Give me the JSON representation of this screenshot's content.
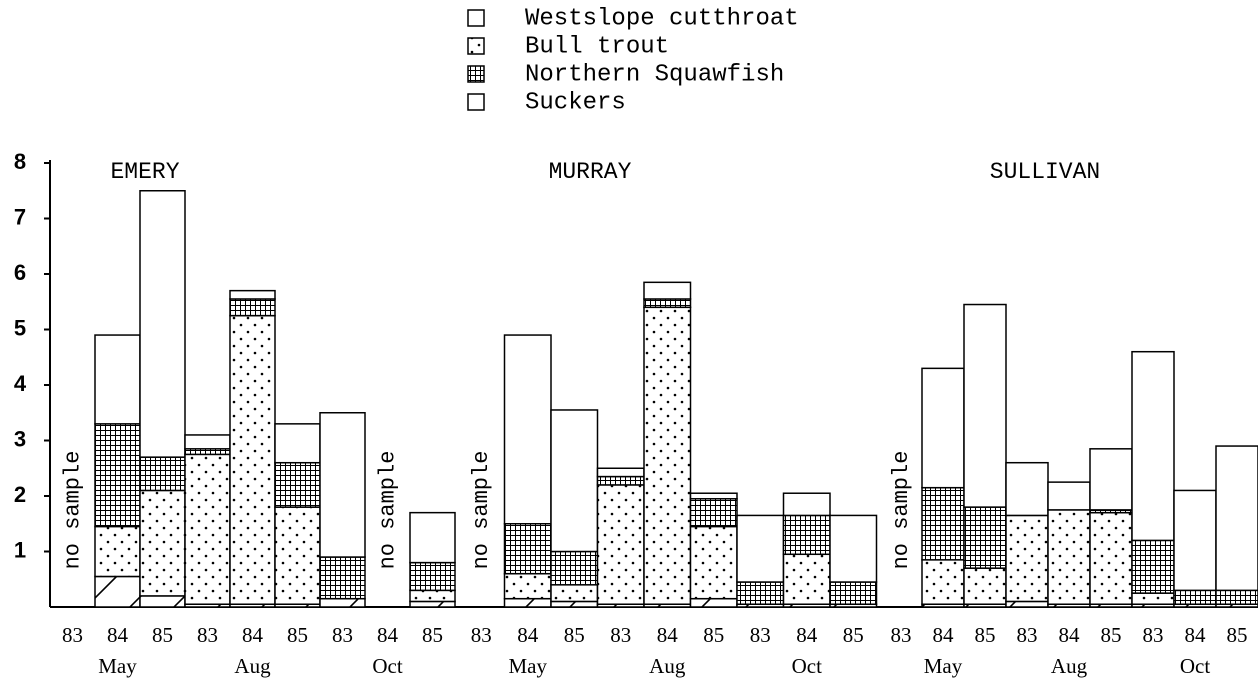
{
  "chart_data": {
    "type": "bar",
    "stacked": true,
    "legend": [
      {
        "name": "Westslope cutthroat",
        "pattern": "hatch"
      },
      {
        "name": "Bull trout",
        "pattern": "dots"
      },
      {
        "name": "Northern Squawfish",
        "pattern": "grid"
      },
      {
        "name": "Suckers",
        "pattern": "plain"
      }
    ],
    "ylim": [
      0,
      8
    ],
    "yticks": [
      1,
      2,
      3,
      4,
      5,
      6,
      7,
      8
    ],
    "panels": [
      {
        "title": "EMERY",
        "categories": [
          "83",
          "84",
          "85",
          "83",
          "84",
          "85",
          "83",
          "84",
          "85"
        ],
        "months": [
          "May",
          "Aug",
          "Oct"
        ],
        "annotations": [
          {
            "text": "no sample",
            "category": 0
          },
          {
            "text": "no sample",
            "category": 7
          }
        ],
        "series": [
          {
            "values": [
              null,
              0.55,
              0.2,
              0.05,
              0.05,
              0.05,
              0.15,
              null,
              0.1
            ]
          },
          {
            "values": [
              null,
              0.9,
              1.9,
              2.7,
              5.2,
              1.75,
              0,
              null,
              0.2
            ]
          },
          {
            "values": [
              null,
              1.85,
              0.6,
              0.1,
              0.3,
              0.8,
              0.75,
              null,
              0.5
            ]
          },
          {
            "values": [
              null,
              1.6,
              4.8,
              0.25,
              0.15,
              0.7,
              2.6,
              null,
              0.9
            ]
          }
        ]
      },
      {
        "title": "MURRAY",
        "categories": [
          "83",
          "84",
          "85",
          "83",
          "84",
          "85",
          "83",
          "84",
          "85"
        ],
        "months": [
          "May",
          "Aug",
          "Oct"
        ],
        "annotations": [
          {
            "text": "no sample",
            "category": 0
          }
        ],
        "series": [
          {
            "values": [
              null,
              0.15,
              0.1,
              0.05,
              0.05,
              0.15,
              0.05,
              0.05,
              0.05
            ]
          },
          {
            "values": [
              null,
              0.45,
              0.3,
              2.15,
              5.35,
              1.3,
              0,
              0.9,
              0
            ]
          },
          {
            "values": [
              null,
              0.9,
              0.6,
              0.15,
              0.15,
              0.5,
              0.4,
              0.7,
              0.4
            ]
          },
          {
            "values": [
              null,
              3.4,
              2.55,
              0.15,
              0.3,
              0.1,
              1.2,
              0.4,
              1.2
            ]
          }
        ]
      },
      {
        "title": "SULLIVAN",
        "categories": [
          "83",
          "84",
          "85",
          "83",
          "84",
          "85",
          "83",
          "84",
          "85"
        ],
        "months": [
          "May",
          "Aug",
          "Oct"
        ],
        "annotations": [
          {
            "text": "no sample",
            "category": 0
          }
        ],
        "series": [
          {
            "values": [
              null,
              0.05,
              0.05,
              0.1,
              0.05,
              0.05,
              0.05,
              0.05,
              0.05
            ]
          },
          {
            "values": [
              null,
              0.8,
              0.65,
              1.55,
              1.7,
              1.65,
              0.2,
              0,
              0
            ]
          },
          {
            "values": [
              null,
              1.3,
              1.1,
              0,
              0,
              0.05,
              0.95,
              0.25,
              0.25
            ]
          },
          {
            "values": [
              null,
              2.15,
              3.65,
              0.95,
              0.5,
              1.1,
              3.4,
              1.8,
              2.6
            ]
          }
        ]
      }
    ]
  }
}
